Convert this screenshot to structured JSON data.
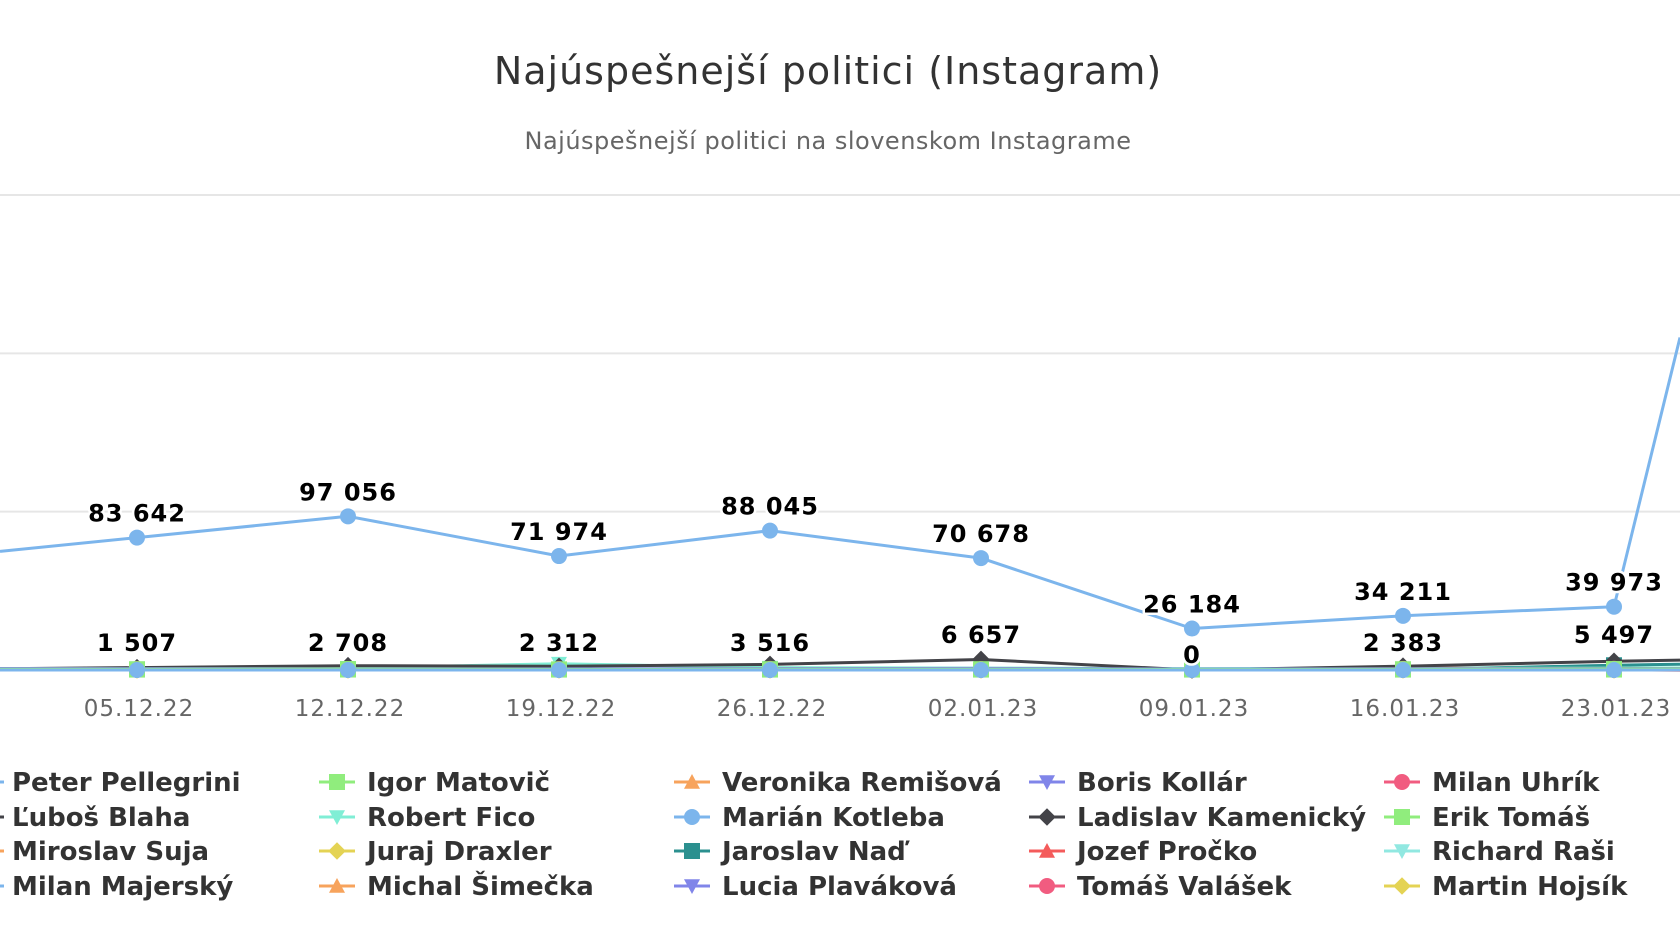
{
  "chart_data": {
    "type": "line",
    "title": "Najúspešnejší politici (Instagram)",
    "subtitle": "Najúspešnejší politici na slovenskom Instagrame",
    "xlabel": "",
    "ylabel": "",
    "categories": [
      "05.12.22",
      "12.12.22",
      "19.12.22",
      "26.12.22",
      "02.01.23",
      "09.01.23",
      "16.01.23",
      "23.01.23"
    ],
    "ylim": [
      0,
      300000
    ],
    "grid": true,
    "legend_position": "bottom",
    "series": [
      {
        "name": "Peter Pellegrini",
        "color": "#7cb5ec",
        "marker": "circle",
        "values": [
          0,
          0,
          0,
          0,
          0,
          0,
          0,
          0
        ]
      },
      {
        "name": "Igor Matovič",
        "color": "#90ed7d",
        "marker": "square",
        "values": [
          500,
          600,
          400,
          500,
          500,
          400,
          500,
          600
        ]
      },
      {
        "name": "Veronika Remišová",
        "color": "#f7a35c",
        "marker": "triangle",
        "values": [
          300,
          300,
          300,
          300,
          300,
          300,
          300,
          300
        ]
      },
      {
        "name": "Boris Kollár",
        "color": "#8085e9",
        "marker": "triangle-down",
        "values": [
          900,
          800,
          700,
          900,
          1000,
          600,
          800,
          900
        ]
      },
      {
        "name": "Milan Uhrík",
        "color": "#f15c80",
        "marker": "circle",
        "values": [
          600,
          500,
          600,
          700,
          600,
          500,
          700,
          800
        ]
      },
      {
        "name": "Ľuboš Blaha",
        "color": "#434348",
        "marker": "diamond",
        "values": [
          1507,
          2708,
          2312,
          3516,
          6657,
          0,
          2383,
          5497
        ]
      },
      {
        "name": "Robert Fico",
        "color": "#80eed5",
        "marker": "triangle-down",
        "values": [
          800,
          1200,
          4000,
          1500,
          1200,
          900,
          1000,
          1200
        ]
      },
      {
        "name": "Marián Kotleba",
        "color": "#7cb5ec",
        "marker": "circle",
        "values": [
          83642,
          97056,
          71974,
          88045,
          70678,
          26184,
          34211,
          39973
        ]
      },
      {
        "name": "Ladislav Kamenický",
        "color": "#434348",
        "marker": "diamond",
        "values": [
          400,
          500,
          400,
          500,
          400,
          400,
          500,
          500
        ]
      },
      {
        "name": "Erik Tomáš",
        "color": "#90ed7d",
        "marker": "square",
        "values": [
          300,
          300,
          300,
          300,
          300,
          300,
          300,
          300
        ]
      },
      {
        "name": "Miroslav Suja",
        "color": "#f7a35c",
        "marker": "triangle",
        "values": [
          200,
          200,
          200,
          200,
          200,
          200,
          200,
          200
        ]
      },
      {
        "name": "Juraj Draxler",
        "color": "#e4d354",
        "marker": "diamond",
        "values": [
          200,
          200,
          200,
          200,
          200,
          200,
          200,
          200
        ]
      },
      {
        "name": "Jaroslav Naď",
        "color": "#2b908f",
        "marker": "square",
        "values": [
          300,
          400,
          300,
          300,
          300,
          300,
          300,
          3000
        ]
      },
      {
        "name": "Jozef Pročko",
        "color": "#f45b5b",
        "marker": "triangle",
        "values": [
          200,
          200,
          200,
          200,
          200,
          200,
          1500,
          200
        ]
      },
      {
        "name": "Richard Raši",
        "color": "#91e8e1",
        "marker": "triangle-down",
        "values": [
          200,
          200,
          200,
          200,
          200,
          200,
          200,
          200
        ]
      },
      {
        "name": "Milan Majerský",
        "color": "#7cb5ec",
        "marker": "circle",
        "values": [
          100,
          100,
          100,
          100,
          100,
          100,
          100,
          100
        ]
      },
      {
        "name": "Michal Šimečka",
        "color": "#f7a35c",
        "marker": "triangle",
        "values": [
          100,
          100,
          100,
          100,
          100,
          100,
          100,
          100
        ]
      },
      {
        "name": "Lucia Plaváková",
        "color": "#8085e9",
        "marker": "triangle-down",
        "values": [
          100,
          100,
          100,
          100,
          100,
          100,
          100,
          100
        ]
      },
      {
        "name": "Tomáš Valášek",
        "color": "#f15c80",
        "marker": "circle",
        "values": [
          100,
          100,
          100,
          100,
          100,
          100,
          100,
          100
        ]
      },
      {
        "name": "Martin Hojsík",
        "color": "#e4d354",
        "marker": "diamond",
        "values": [
          0,
          0,
          0,
          0,
          0,
          0,
          0,
          0
        ]
      }
    ],
    "data_labels": [
      {
        "series": "Marián Kotleba",
        "values": [
          "83 642",
          "97 056",
          "71 974",
          "88 045",
          "70 678",
          "26 184",
          "34 211",
          "39 973"
        ]
      },
      {
        "series": "Ľuboš Blaha",
        "values": [
          "1 507",
          "2 708",
          "2 312",
          "3 516",
          "6 657",
          "0",
          "2 383",
          "5 497"
        ]
      }
    ]
  }
}
